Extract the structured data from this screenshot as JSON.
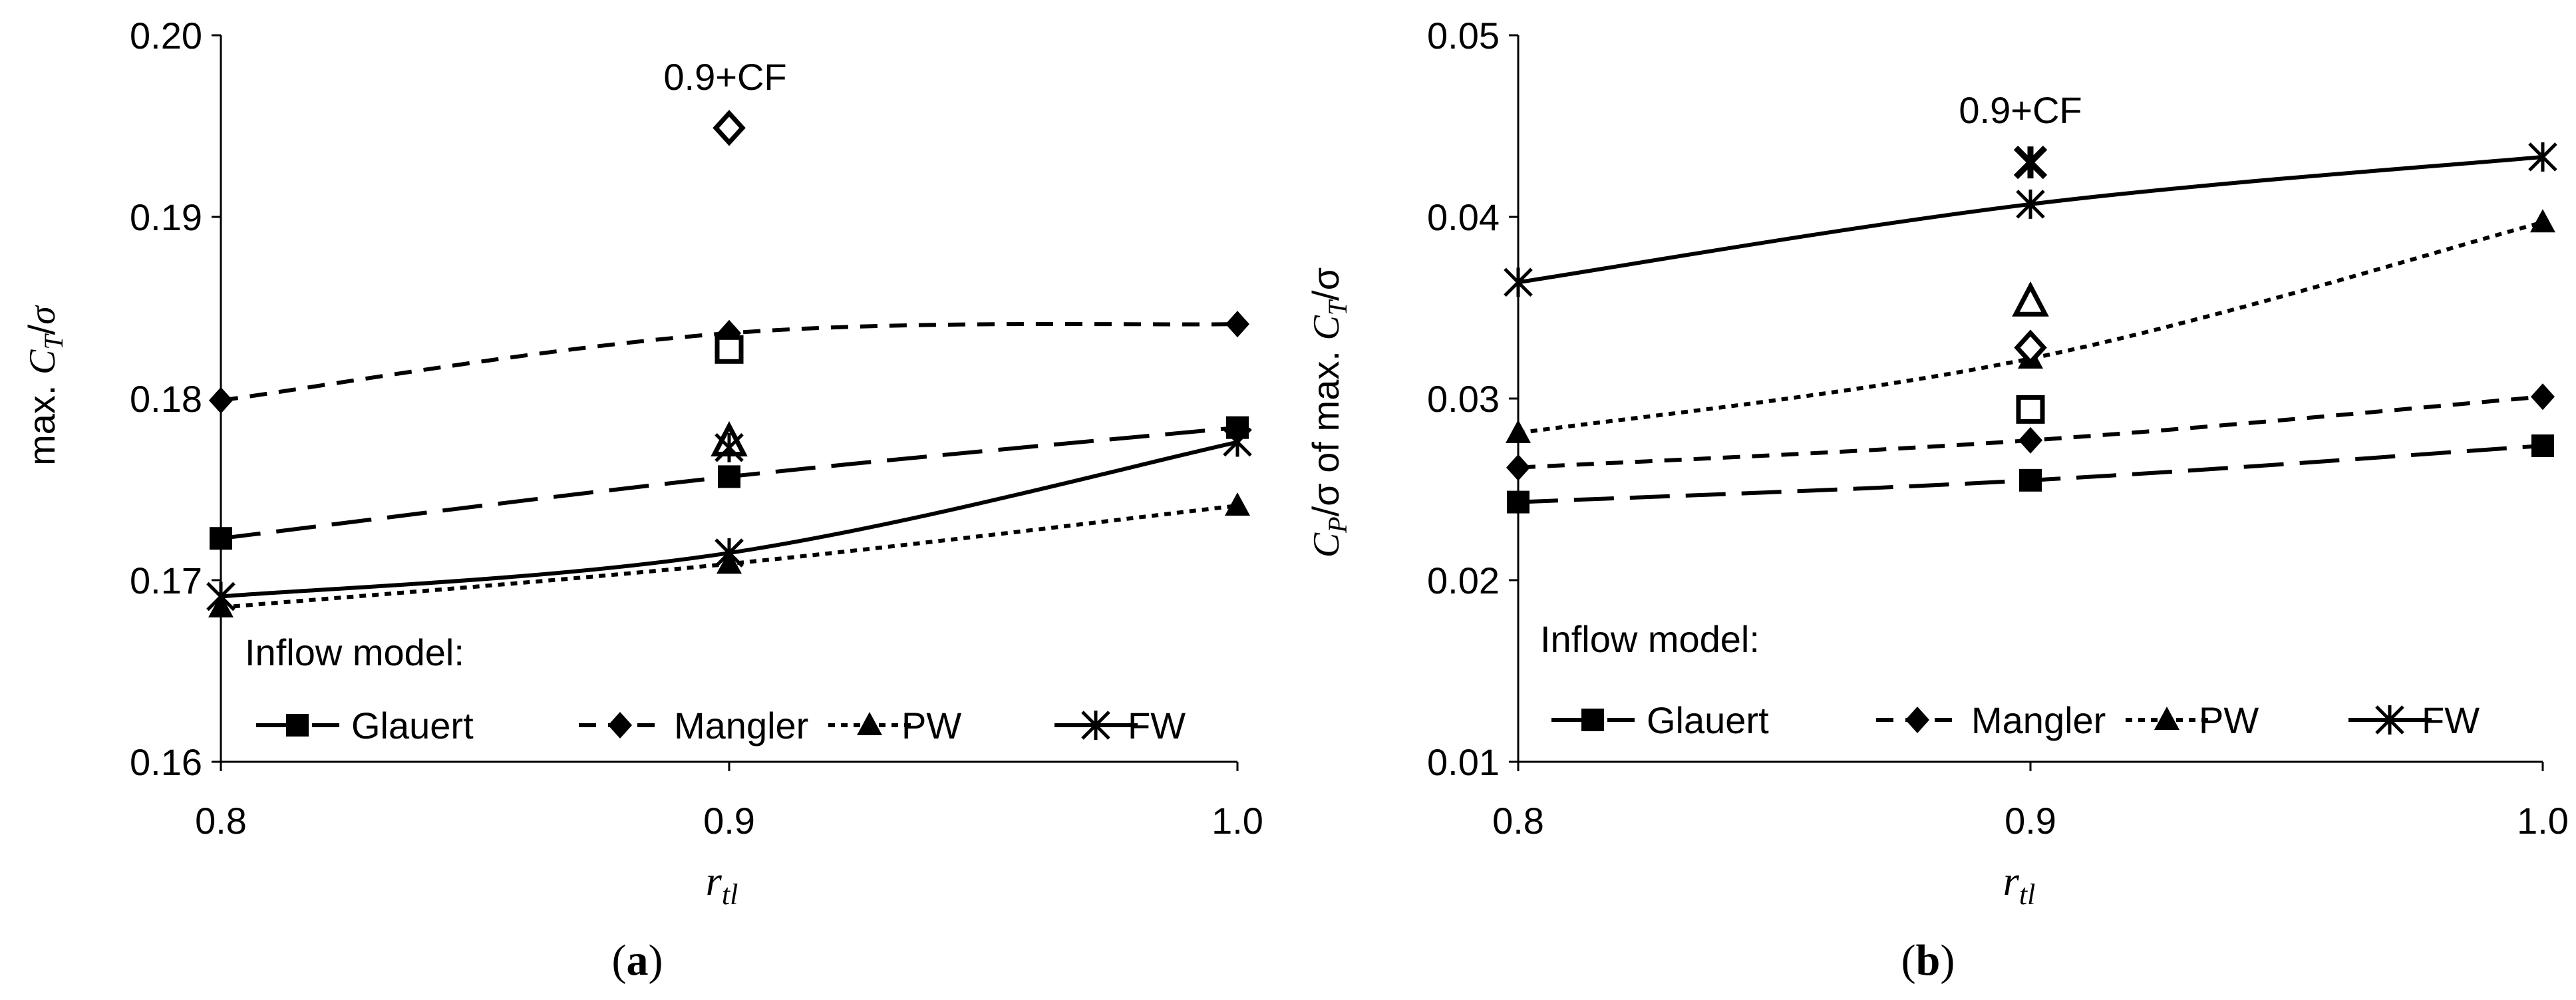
{
  "figure": {
    "panels": [
      {
        "id": "a",
        "caption_prefix": "(",
        "caption_letter": "a",
        "caption_suffix": ")",
        "ylabel_prefix": "max. ",
        "ylabel_var": "C",
        "ylabel_sub": "T",
        "ylabel_slash": "/",
        "ylabel_sigma": "σ",
        "xlabel_var": "r",
        "xlabel_sub": "tl",
        "annotation": "0.9+CF",
        "legend_title": "Inflow model:"
      },
      {
        "id": "b",
        "caption_prefix": "(",
        "caption_letter": "b",
        "caption_suffix": ")",
        "ylabel_var1": "C",
        "ylabel_sub1": "P",
        "ylabel_mid": "/σ of max. ",
        "ylabel_var2": "C",
        "ylabel_sub2": "T",
        "ylabel_end": "/σ",
        "xlabel_var": "r",
        "xlabel_sub": "tl",
        "annotation": "0.9+CF",
        "legend_title": "Inflow model:"
      }
    ]
  },
  "chart_data": [
    {
      "type": "line",
      "title": "(a)",
      "xlabel": "r_tl",
      "ylabel": "max. C_T/σ",
      "x": [
        0.8,
        0.9,
        1.0
      ],
      "xticks": [
        "0.8",
        "0.9",
        "1.0"
      ],
      "xlim": [
        0.8,
        1.0
      ],
      "ylim": [
        0.16,
        0.2
      ],
      "yticks": [
        "0.16",
        "0.17",
        "0.18",
        "0.19",
        "0.20"
      ],
      "series": [
        {
          "name": "Glauert",
          "marker": "square",
          "style": "longdash",
          "values": [
            0.1723,
            0.1757,
            0.1784
          ]
        },
        {
          "name": "Mangler",
          "marker": "diamond",
          "style": "dash",
          "values": [
            0.1799,
            0.1836,
            0.1841
          ]
        },
        {
          "name": "PW",
          "marker": "triangle",
          "style": "dot",
          "values": [
            0.1685,
            0.1709,
            0.1741
          ]
        },
        {
          "name": "FW",
          "marker": "star",
          "style": "solid",
          "values": [
            0.1691,
            0.1715,
            0.1776
          ]
        }
      ],
      "cf_points": [
        {
          "name": "Glauert",
          "marker": "square-open",
          "x": 0.9,
          "y": 0.1827
        },
        {
          "name": "Mangler",
          "marker": "diamond-open",
          "x": 0.9,
          "y": 0.1949
        },
        {
          "name": "PW",
          "marker": "triangle-open",
          "x": 0.9,
          "y": 0.1776
        },
        {
          "name": "FW",
          "marker": "star",
          "x": 0.9,
          "y": 0.1773
        }
      ],
      "legend": [
        "Glauert",
        "Mangler",
        "PW",
        "FW"
      ],
      "legend_position": "bottom-left"
    },
    {
      "type": "line",
      "title": "(b)",
      "xlabel": "r_tl",
      "ylabel": "C_P/σ of max. C_T/σ",
      "x": [
        0.8,
        0.9,
        1.0
      ],
      "xticks": [
        "0.8",
        "0.9",
        "1.0"
      ],
      "xlim": [
        0.8,
        1.0
      ],
      "ylim": [
        0.01,
        0.05
      ],
      "yticks": [
        "0.01",
        "0.02",
        "0.03",
        "0.04",
        "0.05"
      ],
      "series": [
        {
          "name": "Glauert",
          "marker": "square",
          "style": "longdash",
          "values": [
            0.0243,
            0.0255,
            0.0274
          ]
        },
        {
          "name": "Mangler",
          "marker": "diamond",
          "style": "dash",
          "values": [
            0.0262,
            0.0277,
            0.0301
          ]
        },
        {
          "name": "PW",
          "marker": "triangle",
          "style": "dot",
          "values": [
            0.0281,
            0.0322,
            0.0397
          ]
        },
        {
          "name": "FW",
          "marker": "star",
          "style": "solid",
          "values": [
            0.0364,
            0.0407,
            0.0433
          ]
        }
      ],
      "cf_points": [
        {
          "name": "Glauert",
          "marker": "square-open",
          "x": 0.9,
          "y": 0.0294
        },
        {
          "name": "Mangler",
          "marker": "diamond-open",
          "x": 0.9,
          "y": 0.0328
        },
        {
          "name": "PW",
          "marker": "triangle-open",
          "x": 0.9,
          "y": 0.0353
        },
        {
          "name": "FW",
          "marker": "star-bold",
          "x": 0.9,
          "y": 0.043
        }
      ],
      "legend": [
        "Glauert",
        "Mangler",
        "PW",
        "FW"
      ],
      "legend_position": "bottom-left"
    }
  ]
}
